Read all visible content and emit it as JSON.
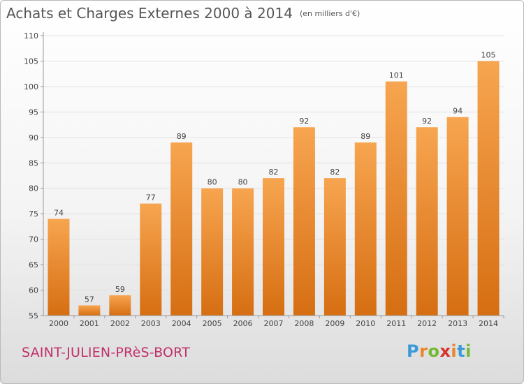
{
  "header": {
    "title": "Achats et Charges Externes 2000 à 2014",
    "unit": "(en milliers d'€)"
  },
  "footer": {
    "commune": "SAINT-JULIEN-PRèS-BORT",
    "logo_letters": [
      "P",
      "r",
      "o",
      "x",
      "i",
      "t",
      "i"
    ],
    "logo_colors": [
      "#3a9ad9",
      "#e8862a",
      "#77b833",
      "#d6322e",
      "#e8862a",
      "#3a9ad9",
      "#77b833"
    ]
  },
  "chart_data": {
    "type": "bar",
    "title": "Achats et Charges Externes 2000 à 2014",
    "subtitle": "(en milliers d'€)",
    "xlabel": "",
    "ylabel": "",
    "categories": [
      "2000",
      "2001",
      "2002",
      "2003",
      "2004",
      "2005",
      "2006",
      "2007",
      "2008",
      "2009",
      "2010",
      "2011",
      "2012",
      "2013",
      "2014"
    ],
    "values": [
      74,
      57,
      59,
      77,
      89,
      80,
      80,
      82,
      92,
      82,
      89,
      101,
      92,
      94,
      105
    ],
    "ylim": [
      55,
      110
    ],
    "yticks": [
      55,
      60,
      65,
      70,
      75,
      80,
      85,
      90,
      95,
      100,
      105,
      110
    ],
    "grid": true,
    "colors": {
      "bar_top": "#f7a550",
      "bar_bottom": "#d66e12",
      "grid": "#e2e2e2",
      "axis": "#999999",
      "text": "#444444"
    }
  }
}
